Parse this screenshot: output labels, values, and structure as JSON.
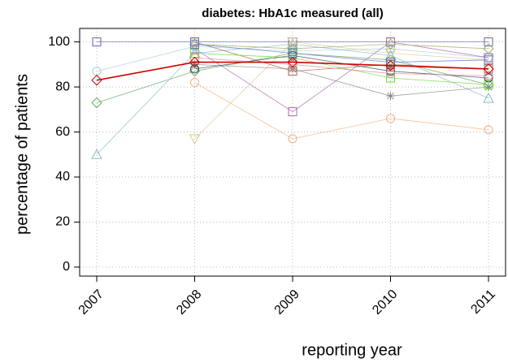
{
  "chart_data": {
    "type": "line",
    "title": "diabetes: HbA1c measured (all)",
    "x_label": "reporting year",
    "y_label": "percentage of patients",
    "categories": [
      "2007",
      "2008",
      "2009",
      "2010",
      "2011"
    ],
    "ylim": [
      -4,
      106
    ],
    "yticks": [
      0,
      20,
      40,
      60,
      80,
      100
    ],
    "grid": true,
    "series": [
      {
        "color": "#6666aa",
        "marker": "square",
        "values": [
          100,
          100,
          100,
          100,
          100
        ]
      },
      {
        "color": "#aaccdd",
        "marker": "circle",
        "values": [
          87,
          98,
          96,
          97,
          93
        ]
      },
      {
        "color": "#66aa66",
        "marker": "diamond",
        "values": [
          73,
          87,
          95,
          92,
          81
        ]
      },
      {
        "color": "#88bbbb",
        "marker": "triangle",
        "values": [
          50,
          95,
          99,
          94,
          75
        ]
      },
      {
        "color": "#f0b080",
        "marker": "circle",
        "values": [
          null,
          82,
          57,
          66,
          61
        ]
      },
      {
        "color": "#d8c890",
        "marker": "triangle-down",
        "values": [
          null,
          57,
          100,
          95,
          92
        ]
      },
      {
        "color": "#aa66aa",
        "marker": "square",
        "values": [
          null,
          97,
          69,
          100,
          93
        ]
      },
      {
        "color": "#888888",
        "marker": "asterisk",
        "values": [
          null,
          90,
          88,
          76,
          80
        ]
      },
      {
        "color": "#aa6644",
        "marker": "square",
        "values": [
          null,
          100,
          87,
          90,
          88
        ]
      },
      {
        "color": "#66dd33",
        "marker": "square",
        "values": [
          null,
          95,
          93,
          84,
          81
        ]
      },
      {
        "color": "#334455",
        "marker": "circle",
        "values": [
          null,
          88,
          94,
          87,
          84
        ]
      },
      {
        "color": "#99aa66",
        "marker": "diamond",
        "values": [
          null,
          99,
          97,
          99,
          97
        ]
      },
      {
        "color": "#dd8899",
        "marker": "circle",
        "values": [
          null,
          93,
          90,
          86,
          85
        ]
      },
      {
        "color": "#5577cc",
        "marker": "square",
        "values": [
          null,
          99,
          95,
          91,
          92
        ]
      },
      {
        "color": "#cc0000",
        "marker": "diamond",
        "values": [
          83,
          91,
          91,
          89.5,
          88
        ]
      }
    ]
  }
}
